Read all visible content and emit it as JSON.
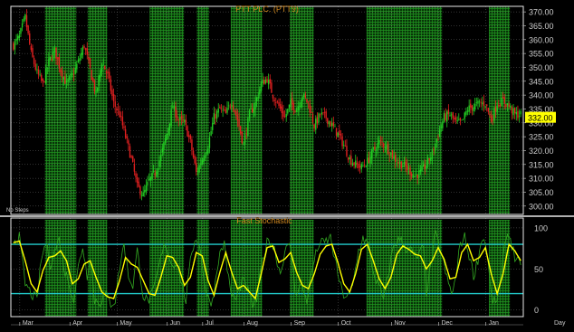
{
  "chart_data": [
    {
      "type": "candlestick",
      "title": "PTT PLC. (PTT9)",
      "note": "No Steps",
      "last_price_label": "332.00",
      "last_price": 332,
      "ylim": [
        297,
        372
      ],
      "y_ticks": [
        300,
        305,
        310,
        315,
        320,
        325,
        330,
        335,
        340,
        345,
        350,
        355,
        360,
        365,
        370
      ],
      "y_tick_labels": [
        "300.00",
        "305.00",
        "310.00",
        "315.00",
        "320.00",
        "325.00",
        "330.00",
        "335.00",
        "340.00",
        "345.00",
        "350.00",
        "355.00",
        "360.00",
        "365.00",
        "370.00"
      ],
      "close_path": [
        [
          0,
          358
        ],
        [
          4,
          361
        ],
        [
          8,
          368
        ],
        [
          12,
          355
        ],
        [
          16,
          348
        ],
        [
          20,
          344
        ],
        [
          24,
          352
        ],
        [
          28,
          356
        ],
        [
          32,
          349
        ],
        [
          36,
          344
        ],
        [
          40,
          347
        ],
        [
          44,
          352
        ],
        [
          48,
          358
        ],
        [
          52,
          349
        ],
        [
          56,
          340
        ],
        [
          60,
          352
        ],
        [
          64,
          347
        ],
        [
          68,
          337
        ],
        [
          72,
          333
        ],
        [
          76,
          325
        ],
        [
          80,
          317
        ],
        [
          84,
          307
        ],
        [
          88,
          304
        ],
        [
          92,
          309
        ],
        [
          96,
          312
        ],
        [
          100,
          318
        ],
        [
          104,
          326
        ],
        [
          108,
          336
        ],
        [
          112,
          331
        ],
        [
          116,
          330
        ],
        [
          120,
          323
        ],
        [
          124,
          312
        ],
        [
          128,
          317
        ],
        [
          132,
          322
        ],
        [
          136,
          332
        ],
        [
          140,
          335
        ],
        [
          144,
          333
        ],
        [
          148,
          338
        ],
        [
          152,
          331
        ],
        [
          156,
          322
        ],
        [
          160,
          333
        ],
        [
          164,
          337
        ],
        [
          168,
          344
        ],
        [
          172,
          346
        ],
        [
          176,
          340
        ],
        [
          180,
          336
        ],
        [
          184,
          332
        ],
        [
          188,
          337
        ],
        [
          192,
          335
        ],
        [
          196,
          340
        ],
        [
          200,
          337
        ],
        [
          204,
          329
        ],
        [
          208,
          333
        ],
        [
          212,
          332
        ],
        [
          216,
          329
        ],
        [
          220,
          326
        ],
        [
          224,
          322
        ],
        [
          228,
          317
        ],
        [
          232,
          315
        ],
        [
          236,
          314
        ],
        [
          240,
          316
        ],
        [
          244,
          320
        ],
        [
          248,
          323
        ],
        [
          252,
          322
        ],
        [
          256,
          319
        ],
        [
          260,
          316
        ],
        [
          264,
          315
        ],
        [
          268,
          313
        ],
        [
          272,
          311
        ],
        [
          276,
          312
        ],
        [
          280,
          315
        ],
        [
          284,
          319
        ],
        [
          288,
          326
        ],
        [
          292,
          332
        ],
        [
          296,
          333
        ],
        [
          300,
          330
        ],
        [
          304,
          330
        ],
        [
          308,
          335
        ],
        [
          312,
          336
        ],
        [
          316,
          337
        ],
        [
          320,
          337
        ],
        [
          324,
          331
        ],
        [
          328,
          337
        ],
        [
          332,
          338
        ],
        [
          336,
          336
        ],
        [
          340,
          333
        ],
        [
          344,
          333
        ]
      ],
      "oscillator": {
        "title": "Fast Stochastic",
        "ylim": [
          -8,
          112
        ],
        "y_ticks": [
          0,
          50,
          100
        ],
        "y_tick_labels": [
          "0",
          "50",
          "100"
        ],
        "levels": [
          20,
          80
        ],
        "k_path": [
          [
            0,
            85
          ],
          [
            4,
            88
          ],
          [
            6,
            60
          ],
          [
            8,
            32
          ],
          [
            12,
            20
          ],
          [
            16,
            12
          ],
          [
            19,
            62
          ],
          [
            22,
            82
          ],
          [
            25,
            56
          ],
          [
            28,
            72
          ],
          [
            31,
            86
          ],
          [
            35,
            46
          ],
          [
            38,
            32
          ],
          [
            41,
            12
          ],
          [
            44,
            52
          ],
          [
            47,
            78
          ],
          [
            50,
            42
          ],
          [
            52,
            68
          ],
          [
            55,
            12
          ],
          [
            59,
            10
          ],
          [
            62,
            20
          ],
          [
            66,
            8
          ],
          [
            69,
            12
          ],
          [
            72,
            52
          ],
          [
            75,
            80
          ],
          [
            78,
            42
          ],
          [
            81,
            30
          ],
          [
            84,
            72
          ],
          [
            88,
            18
          ],
          [
            91,
            10
          ],
          [
            95,
            22
          ],
          [
            99,
            56
          ],
          [
            103,
            82
          ],
          [
            107,
            56
          ],
          [
            111,
            58
          ],
          [
            114,
            32
          ],
          [
            117,
            12
          ],
          [
            121,
            72
          ],
          [
            124,
            90
          ],
          [
            127,
            70
          ],
          [
            131,
            16
          ],
          [
            135,
            10
          ],
          [
            139,
            62
          ],
          [
            143,
            82
          ],
          [
            147,
            22
          ],
          [
            151,
            12
          ],
          [
            155,
            36
          ],
          [
            158,
            28
          ],
          [
            162,
            6
          ],
          [
            165,
            12
          ],
          [
            169,
            62
          ],
          [
            173,
            88
          ],
          [
            177,
            74
          ],
          [
            181,
            44
          ],
          [
            184,
            72
          ],
          [
            188,
            78
          ],
          [
            191,
            22
          ],
          [
            195,
            30
          ],
          [
            199,
            12
          ],
          [
            203,
            54
          ],
          [
            207,
            80
          ],
          [
            211,
            82
          ],
          [
            215,
            88
          ],
          [
            219,
            52
          ],
          [
            223,
            20
          ],
          [
            227,
            16
          ],
          [
            230,
            28
          ],
          [
            234,
            72
          ],
          [
            237,
            88
          ],
          [
            241,
            78
          ],
          [
            244,
            46
          ],
          [
            248,
            28
          ],
          [
            251,
            12
          ],
          [
            254,
            42
          ],
          [
            258,
            80
          ],
          [
            262,
            86
          ],
          [
            266,
            76
          ],
          [
            270,
            72
          ],
          [
            273,
            62
          ],
          [
            276,
            70
          ],
          [
            278,
            76
          ],
          [
            280,
            22
          ],
          [
            283,
            52
          ],
          [
            286,
            92
          ],
          [
            290,
            70
          ],
          [
            294,
            38
          ],
          [
            297,
            20
          ],
          [
            300,
            38
          ],
          [
            303,
            82
          ],
          [
            306,
            88
          ],
          [
            310,
            60
          ],
          [
            312,
            42
          ],
          [
            315,
            62
          ],
          [
            318,
            90
          ],
          [
            321,
            74
          ],
          [
            324,
            16
          ],
          [
            327,
            6
          ],
          [
            331,
            42
          ],
          [
            334,
            92
          ],
          [
            337,
            88
          ],
          [
            340,
            64
          ],
          [
            342,
            62
          ],
          [
            344,
            48
          ]
        ],
        "d_path": [
          [
            0,
            82
          ],
          [
            4,
            84
          ],
          [
            8,
            60
          ],
          [
            12,
            32
          ],
          [
            16,
            22
          ],
          [
            20,
            48
          ],
          [
            24,
            64
          ],
          [
            28,
            66
          ],
          [
            32,
            72
          ],
          [
            36,
            60
          ],
          [
            40,
            32
          ],
          [
            44,
            38
          ],
          [
            48,
            56
          ],
          [
            52,
            60
          ],
          [
            56,
            40
          ],
          [
            60,
            22
          ],
          [
            64,
            16
          ],
          [
            68,
            14
          ],
          [
            72,
            36
          ],
          [
            76,
            64
          ],
          [
            80,
            56
          ],
          [
            84,
            52
          ],
          [
            88,
            36
          ],
          [
            92,
            20
          ],
          [
            96,
            18
          ],
          [
            100,
            40
          ],
          [
            104,
            66
          ],
          [
            108,
            64
          ],
          [
            112,
            52
          ],
          [
            116,
            30
          ],
          [
            120,
            40
          ],
          [
            124,
            70
          ],
          [
            128,
            66
          ],
          [
            132,
            36
          ],
          [
            136,
            18
          ],
          [
            140,
            46
          ],
          [
            144,
            70
          ],
          [
            148,
            46
          ],
          [
            152,
            26
          ],
          [
            156,
            30
          ],
          [
            160,
            22
          ],
          [
            164,
            14
          ],
          [
            168,
            44
          ],
          [
            172,
            76
          ],
          [
            176,
            78
          ],
          [
            180,
            58
          ],
          [
            184,
            62
          ],
          [
            188,
            70
          ],
          [
            192,
            46
          ],
          [
            196,
            30
          ],
          [
            200,
            26
          ],
          [
            204,
            44
          ],
          [
            208,
            68
          ],
          [
            212,
            78
          ],
          [
            216,
            80
          ],
          [
            220,
            58
          ],
          [
            224,
            32
          ],
          [
            228,
            22
          ],
          [
            232,
            44
          ],
          [
            236,
            74
          ],
          [
            240,
            80
          ],
          [
            244,
            60
          ],
          [
            248,
            38
          ],
          [
            252,
            26
          ],
          [
            256,
            40
          ],
          [
            260,
            68
          ],
          [
            264,
            78
          ],
          [
            268,
            74
          ],
          [
            272,
            68
          ],
          [
            276,
            66
          ],
          [
            280,
            50
          ],
          [
            284,
            60
          ],
          [
            288,
            76
          ],
          [
            292,
            62
          ],
          [
            296,
            38
          ],
          [
            300,
            40
          ],
          [
            304,
            70
          ],
          [
            308,
            80
          ],
          [
            312,
            60
          ],
          [
            316,
            64
          ],
          [
            320,
            76
          ],
          [
            324,
            44
          ],
          [
            328,
            20
          ],
          [
            332,
            44
          ],
          [
            336,
            80
          ],
          [
            340,
            72
          ],
          [
            344,
            60
          ]
        ]
      },
      "x_tick_labels": [
        "Mar",
        "Apr",
        "May",
        "Jun",
        "Jul",
        "Aug",
        "Sep",
        "Oct",
        "Nov",
        "Dec",
        "Jan"
      ],
      "x_unit_label": "Day",
      "x_tick_idx": [
        8,
        42,
        74,
        108,
        132,
        160,
        192,
        224,
        260,
        292,
        324
      ],
      "x_count": 345,
      "highlight_bands": [
        [
          22,
          42
        ],
        [
          51,
          63
        ],
        [
          93,
          115
        ],
        [
          125,
          132
        ],
        [
          148,
          168
        ],
        [
          188,
          203
        ],
        [
          240,
          290
        ],
        [
          323,
          336
        ]
      ],
      "colors": {
        "background": "#000000",
        "grid": "#808080",
        "band": "#22a522",
        "up": "#22cc22",
        "down": "#e02020",
        "title": "#d08820",
        "axis_text": "#cccccc",
        "price_tag": "#ffff00",
        "level_line": "#22cccc",
        "k_line": "#33aa22",
        "d_line": "#ffff00"
      }
    }
  ]
}
